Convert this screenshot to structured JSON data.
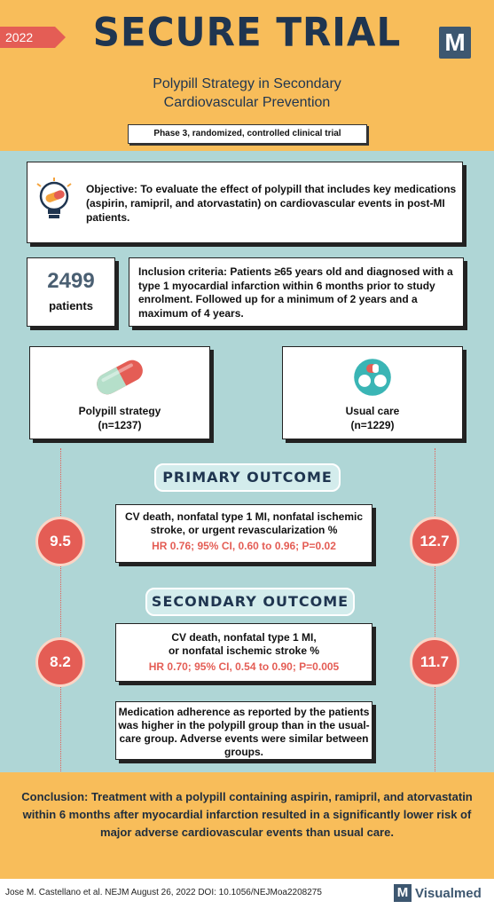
{
  "header": {
    "year": "2022",
    "title": "SECURE TRIAL",
    "logo_letter": "M",
    "subtitle_line1": "Polypill Strategy in Secondary",
    "subtitle_line2": "Cardiovascular Prevention",
    "phase": "Phase 3, randomized, controlled clinical trial"
  },
  "objective": {
    "icon": "lightbulb-pill-icon",
    "text": "Objective: To evaluate the effect of polypill that includes key medications (aspirin, ramipril, and atorvastatin) on cardiovascular events in post-MI patients."
  },
  "patients": {
    "count": "2499",
    "label": "patients"
  },
  "inclusion": {
    "text": "Inclusion criteria: Patients ≥65 years old and diagnosed with a type 1 myocardial infarction within 6 months prior to study enrolment. Followed up for a minimum of 2 years and a maximum of 4 years."
  },
  "arms": {
    "polypill": {
      "name": "Polypill strategy",
      "n": "(n=1237)",
      "icon": "capsule-icon"
    },
    "usual": {
      "name": "Usual care",
      "n": "(n=1229)",
      "icon": "pills-icon"
    }
  },
  "primary": {
    "label": "PRIMARY OUTCOME",
    "desc_line1": "CV death, nonfatal type 1 MI, nonfatal ischemic",
    "desc_line2": "stroke, or urgent revascularization %",
    "stats": "HR 0.76; 95% CI, 0.60 to 0.96; P=0.02",
    "polypill_value": "9.5",
    "usual_value": "12.7"
  },
  "secondary": {
    "label": "SECONDARY OUTCOME",
    "desc_line1": "CV death, nonfatal type 1 MI,",
    "desc_line2": "or nonfatal ischemic stroke %",
    "stats": "HR 0.70; 95% CI, 0.54 to 0.90; P=0.005",
    "polypill_value": "8.2",
    "usual_value": "11.7"
  },
  "adherence": {
    "text": "Medication adherence as reported by the patients was higher in the polypill group than in the usual-care group. Adverse events were similar between groups."
  },
  "conclusion": {
    "text": "Conclusion: Treatment with a polypill containing aspirin, ramipril, and atorvastatin within 6 months after myocardial infarction resulted in a significantly lower risk of major adverse cardiovascular events than usual care."
  },
  "footer": {
    "reference": "Jose M. Castellano et al. NEJM August 26, 2022 DOI: 10.1056/NEJMoa2208275",
    "brand_letter": "M",
    "brand": "Visualmed"
  },
  "colors": {
    "header_bg": "#f8bd5a",
    "main_bg": "#afd6d6",
    "accent_red": "#e45d55",
    "navy": "#1f3550"
  }
}
